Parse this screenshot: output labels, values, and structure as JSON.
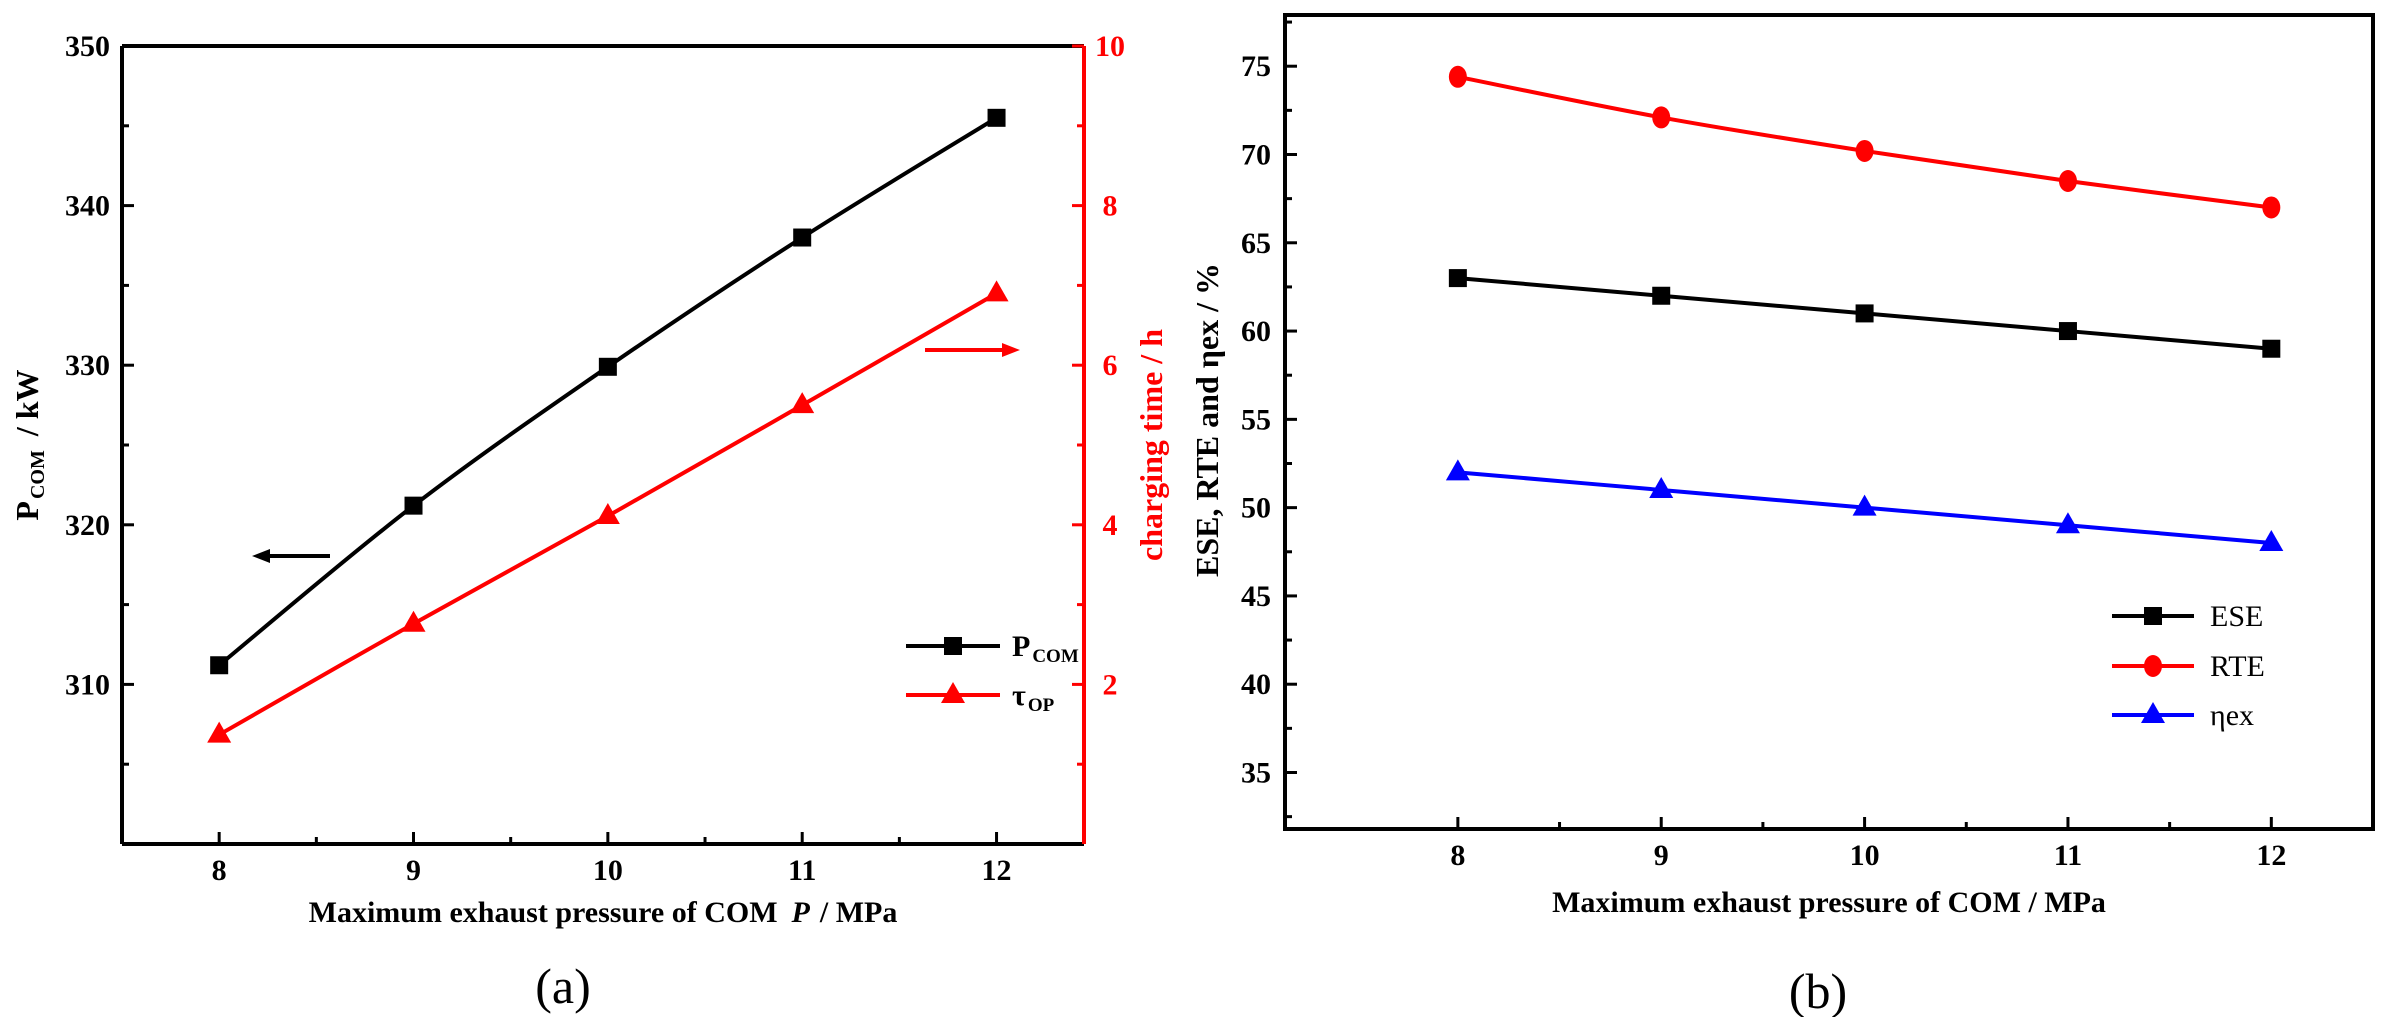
{
  "chart_data": [
    {
      "panel_label": "(a)",
      "type": "line",
      "x": [
        8,
        9,
        10,
        11,
        12
      ],
      "xlabel": "Maximum exhaust pressure of COM",
      "xlabel_var": "P",
      "xlabel_unit": "/ MPa",
      "ylabel": "P",
      "ylabel_sub": "COM",
      "ylabel_unit": "/ kW",
      "y2label": "charging time / h",
      "xlim": [
        7.5,
        12.45
      ],
      "ylim": [
        300,
        350
      ],
      "y2lim": [
        0,
        10
      ],
      "xticks": [
        8,
        9,
        10,
        11,
        12
      ],
      "yticks": [
        310,
        320,
        330,
        340,
        350
      ],
      "y2ticks": [
        2,
        4,
        6,
        8,
        10
      ],
      "series": [
        {
          "name": "P",
          "sub": "COM",
          "axis": "left",
          "marker": "square",
          "color": "#000000",
          "values": [
            311.2,
            321.2,
            329.9,
            338.0,
            345.5
          ]
        },
        {
          "name": "τ",
          "sub": "OP",
          "axis": "right",
          "marker": "triangle",
          "color": "#ff0000",
          "values": [
            1.37,
            2.76,
            4.11,
            5.5,
            6.9
          ]
        }
      ],
      "legend": "bottom-right",
      "grid": false
    },
    {
      "panel_label": "(b)",
      "type": "line",
      "x": [
        8,
        9,
        10,
        11,
        12
      ],
      "xlabel": "Maximum exhaust pressure of COM   / MPa",
      "ylabel": "ESE, RTE and ηex / %",
      "xlim": [
        7.15,
        12.5
      ],
      "ylim": [
        31.8,
        77.9
      ],
      "xticks": [
        8,
        9,
        10,
        11,
        12
      ],
      "yticks": [
        35,
        40,
        45,
        50,
        55,
        60,
        65,
        70,
        75
      ],
      "series": [
        {
          "name": "ESE",
          "marker": "square",
          "color": "#000000",
          "values": [
            63,
            62,
            61,
            60,
            59
          ]
        },
        {
          "name": "RTE",
          "marker": "circle",
          "color": "#ff0000",
          "values": [
            74.4,
            72.1,
            70.2,
            68.5,
            67.0
          ]
        },
        {
          "name": "ηex",
          "marker": "triangle",
          "color": "#0000ff",
          "values": [
            52,
            51,
            50,
            49,
            48
          ]
        }
      ],
      "legend": "bottom-right",
      "grid": false
    }
  ]
}
